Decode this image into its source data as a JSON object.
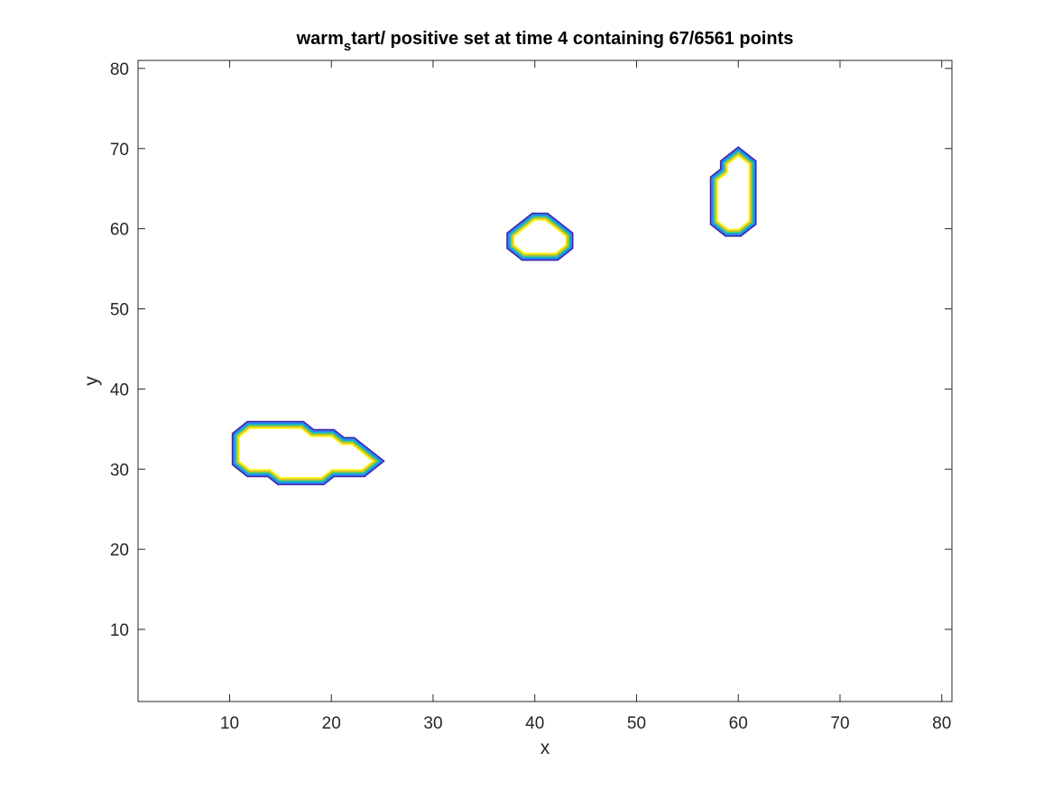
{
  "chart_data": {
    "type": "contour",
    "title": {
      "prefix": "warm",
      "subscript": "s",
      "suffix": "tart/ positive set at time 4 containing 67/6561 points"
    },
    "xlabel": "x",
    "ylabel": "y",
    "xlim": [
      1,
      81
    ],
    "ylim": [
      1,
      81
    ],
    "xticks": [
      10,
      20,
      30,
      40,
      50,
      60,
      70,
      80
    ],
    "yticks": [
      10,
      20,
      30,
      40,
      50,
      60,
      70,
      80
    ],
    "grid": false,
    "box": true,
    "contour_colors": [
      "#3e26a8",
      "#2e7cf7",
      "#0fb0cf",
      "#6cc95a",
      "#e6c229",
      "#f9fb0e"
    ],
    "regions": [
      {
        "name": "region-1",
        "boundary": [
          [
            11,
            31
          ],
          [
            11,
            34
          ],
          [
            12,
            35
          ],
          [
            17,
            35
          ],
          [
            18,
            34
          ],
          [
            20,
            34
          ],
          [
            21,
            33
          ],
          [
            22,
            33
          ],
          [
            24,
            31
          ],
          [
            23,
            30
          ],
          [
            20,
            30
          ],
          [
            19,
            29
          ],
          [
            15,
            29
          ],
          [
            14,
            30
          ],
          [
            12,
            30
          ]
        ]
      },
      {
        "name": "region-2",
        "boundary": [
          [
            38,
            58
          ],
          [
            38,
            59
          ],
          [
            39,
            60
          ],
          [
            40,
            61
          ],
          [
            41,
            61
          ],
          [
            42,
            60
          ],
          [
            43,
            59
          ],
          [
            43,
            58
          ],
          [
            42,
            57
          ],
          [
            39,
            57
          ]
        ]
      },
      {
        "name": "region-3",
        "boundary": [
          [
            58,
            61
          ],
          [
            58,
            66
          ],
          [
            59,
            67
          ],
          [
            59,
            68
          ],
          [
            60,
            69
          ],
          [
            61,
            68
          ],
          [
            61,
            61
          ],
          [
            60,
            60
          ],
          [
            59,
            60
          ]
        ]
      }
    ]
  }
}
